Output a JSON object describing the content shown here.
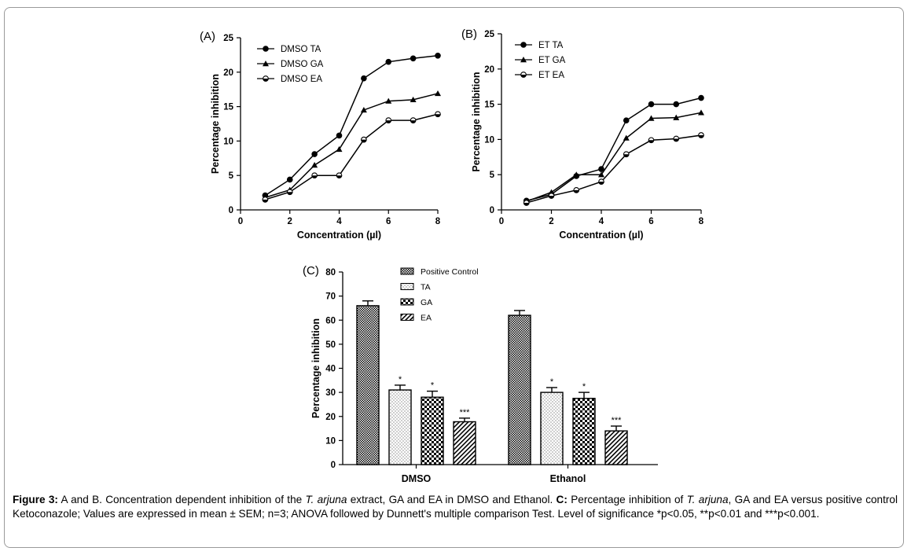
{
  "chart_data": [
    {
      "panel_label": "(A)",
      "type": "line",
      "xlabel": "Concentration (µl)",
      "ylabel": "Percentage inhibition",
      "xlim": [
        0,
        8
      ],
      "ylim": [
        0,
        25
      ],
      "xticks": [
        "0",
        "2",
        "4",
        "6",
        "8"
      ],
      "yticks": [
        "0",
        "5",
        "10",
        "15",
        "20",
        "25"
      ],
      "legend_position": "top-left",
      "x": [
        1,
        2,
        3,
        4,
        5,
        6,
        7,
        8
      ],
      "series": [
        {
          "name": "DMSO TA",
          "marker": "filled-circle",
          "values": [
            2.1,
            4.4,
            8.1,
            10.8,
            19.1,
            21.5,
            22.0,
            22.4
          ]
        },
        {
          "name": "DMSO GA",
          "marker": "triangle",
          "values": [
            1.8,
            2.9,
            6.5,
            8.8,
            14.5,
            15.8,
            16.0,
            16.9
          ]
        },
        {
          "name": "DMSO EA",
          "marker": "half-circle",
          "values": [
            1.5,
            2.6,
            5.0,
            5.0,
            10.2,
            13.0,
            13.0,
            13.9
          ]
        }
      ]
    },
    {
      "panel_label": "(B)",
      "type": "line",
      "xlabel": "Concentration (µl)",
      "ylabel": "Percentage inhibition",
      "xlim": [
        0,
        8
      ],
      "ylim": [
        0,
        25
      ],
      "xticks": [
        "0",
        "2",
        "4",
        "6",
        "8"
      ],
      "yticks": [
        "0",
        "5",
        "10",
        "15",
        "20",
        "25"
      ],
      "legend_position": "top-left",
      "x": [
        1,
        2,
        3,
        4,
        5,
        6,
        7,
        8
      ],
      "series": [
        {
          "name": "ET TA",
          "marker": "filled-circle",
          "values": [
            1.3,
            2.2,
            4.8,
            5.8,
            12.7,
            15.0,
            15.0,
            15.9
          ]
        },
        {
          "name": "ET GA",
          "marker": "triangle",
          "values": [
            1.2,
            2.5,
            5.0,
            5.0,
            10.2,
            13.0,
            13.1,
            13.8
          ]
        },
        {
          "name": "ET EA",
          "marker": "half-circle",
          "values": [
            1.0,
            2.0,
            2.8,
            4.0,
            7.9,
            9.9,
            10.1,
            10.6
          ]
        }
      ]
    },
    {
      "panel_label": "(C)",
      "type": "bar",
      "ylabel": "Percentage inhibition",
      "ylim": [
        0,
        80
      ],
      "yticks": [
        "0",
        "10",
        "20",
        "30",
        "40",
        "50",
        "60",
        "70",
        "80"
      ],
      "categories": [
        "DMSO",
        "Ethanol"
      ],
      "legend_position": "top",
      "series": [
        {
          "name": "Positive Control",
          "pattern": "dense-checker",
          "values": [
            66,
            62
          ],
          "errors": [
            2,
            2
          ],
          "significance": [
            "",
            ""
          ]
        },
        {
          "name": "TA",
          "pattern": "dots",
          "values": [
            31,
            30
          ],
          "errors": [
            2,
            2
          ],
          "significance": [
            "*",
            "*"
          ]
        },
        {
          "name": "GA",
          "pattern": "checker",
          "values": [
            28,
            27.5
          ],
          "errors": [
            2.5,
            2.5
          ],
          "significance": [
            "*",
            "*"
          ]
        },
        {
          "name": "EA",
          "pattern": "diagonal",
          "values": [
            17.8,
            14
          ],
          "errors": [
            1.5,
            2
          ],
          "significance": [
            "***",
            "***"
          ]
        }
      ]
    }
  ],
  "caption": {
    "label": "Figure 3:",
    "t1": " A and B. Concentration dependent inhibition of the ",
    "i1": "T. arjuna",
    "t2": " extract, GA and EA in DMSO and Ethanol. ",
    "label2": "C:",
    "t3": " Percentage inhibition of ",
    "i2": "T. arjuna",
    "t4": ", GA and EA versus positive control Ketoconazole; Values are expressed in mean ± SEM; n=3; ANOVA followed by Dunnett's multiple comparison Test. Level of significance *p<0.05, **p<0.01 and ***p<0.001."
  }
}
